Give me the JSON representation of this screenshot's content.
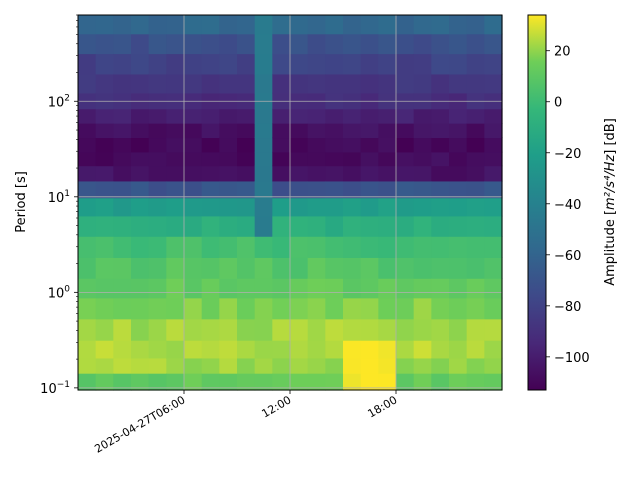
{
  "chart_data": {
    "type": "heatmap",
    "title": "",
    "xlabel": "",
    "ylabel": "Period [s]",
    "colorbar_label_prefix": "Amplitude [",
    "colorbar_label_math": "m²/s⁴/Hz",
    "colorbar_label_suffix": "] [dB]",
    "colormap": "viridis",
    "x_axis": {
      "type": "datetime",
      "start": "2025-04-27T00:00",
      "end": "2025-04-27T23:00",
      "ticks": [
        {
          "value": "2025-04-27T06:00",
          "label": "2025-04-27T06:00"
        },
        {
          "value": "2025-04-27T12:00",
          "label": "12:00"
        },
        {
          "value": "2025-04-27T18:00",
          "label": "18:00"
        }
      ]
    },
    "y_axis": {
      "scale": "log",
      "range": [
        0.095,
        800
      ],
      "ticks": [
        {
          "value": 0.1,
          "base": "10",
          "exp": "−1"
        },
        {
          "value": 1,
          "base": "10",
          "exp": "0"
        },
        {
          "value": 10,
          "base": "10",
          "exp": "1"
        },
        {
          "value": 100,
          "base": "10",
          "exp": "2"
        }
      ]
    },
    "colorbar": {
      "range": [
        -113,
        34
      ],
      "ticks": [
        20,
        0,
        -20,
        -40,
        -60,
        -80,
        -100
      ],
      "tick_labels": [
        "20",
        "0",
        "−20",
        "−40",
        "−60",
        "−80",
        "−100"
      ]
    },
    "grid": true,
    "times_hours": [
      0,
      1,
      2,
      3,
      4,
      5,
      6,
      7,
      8,
      9,
      10,
      11,
      12,
      13,
      14,
      15,
      16,
      17,
      18,
      19,
      20,
      21,
      22,
      23
    ],
    "period_bins_s": [
      0.12,
      0.17,
      0.25,
      0.4,
      0.7,
      1.1,
      1.8,
      3,
      5,
      8,
      12,
      18,
      25,
      35,
      50,
      70,
      100,
      150,
      250,
      400,
      650
    ],
    "amplitude_profile_db": [
      12,
      22,
      24,
      22,
      18,
      12,
      8,
      2,
      -10,
      -22,
      -70,
      -105,
      -108,
      -110,
      -106,
      -98,
      -92,
      -86,
      -80,
      -72,
      -58
    ],
    "anomalies": [
      {
        "time_hour": 10,
        "period_from_s": 5,
        "period_to_s": 800,
        "amplitude_db": -45
      },
      {
        "time_hours": [
          15,
          16,
          17
        ],
        "period_from_s": 0.1,
        "period_to_s": 0.25,
        "amplitude_db": 33
      }
    ]
  }
}
